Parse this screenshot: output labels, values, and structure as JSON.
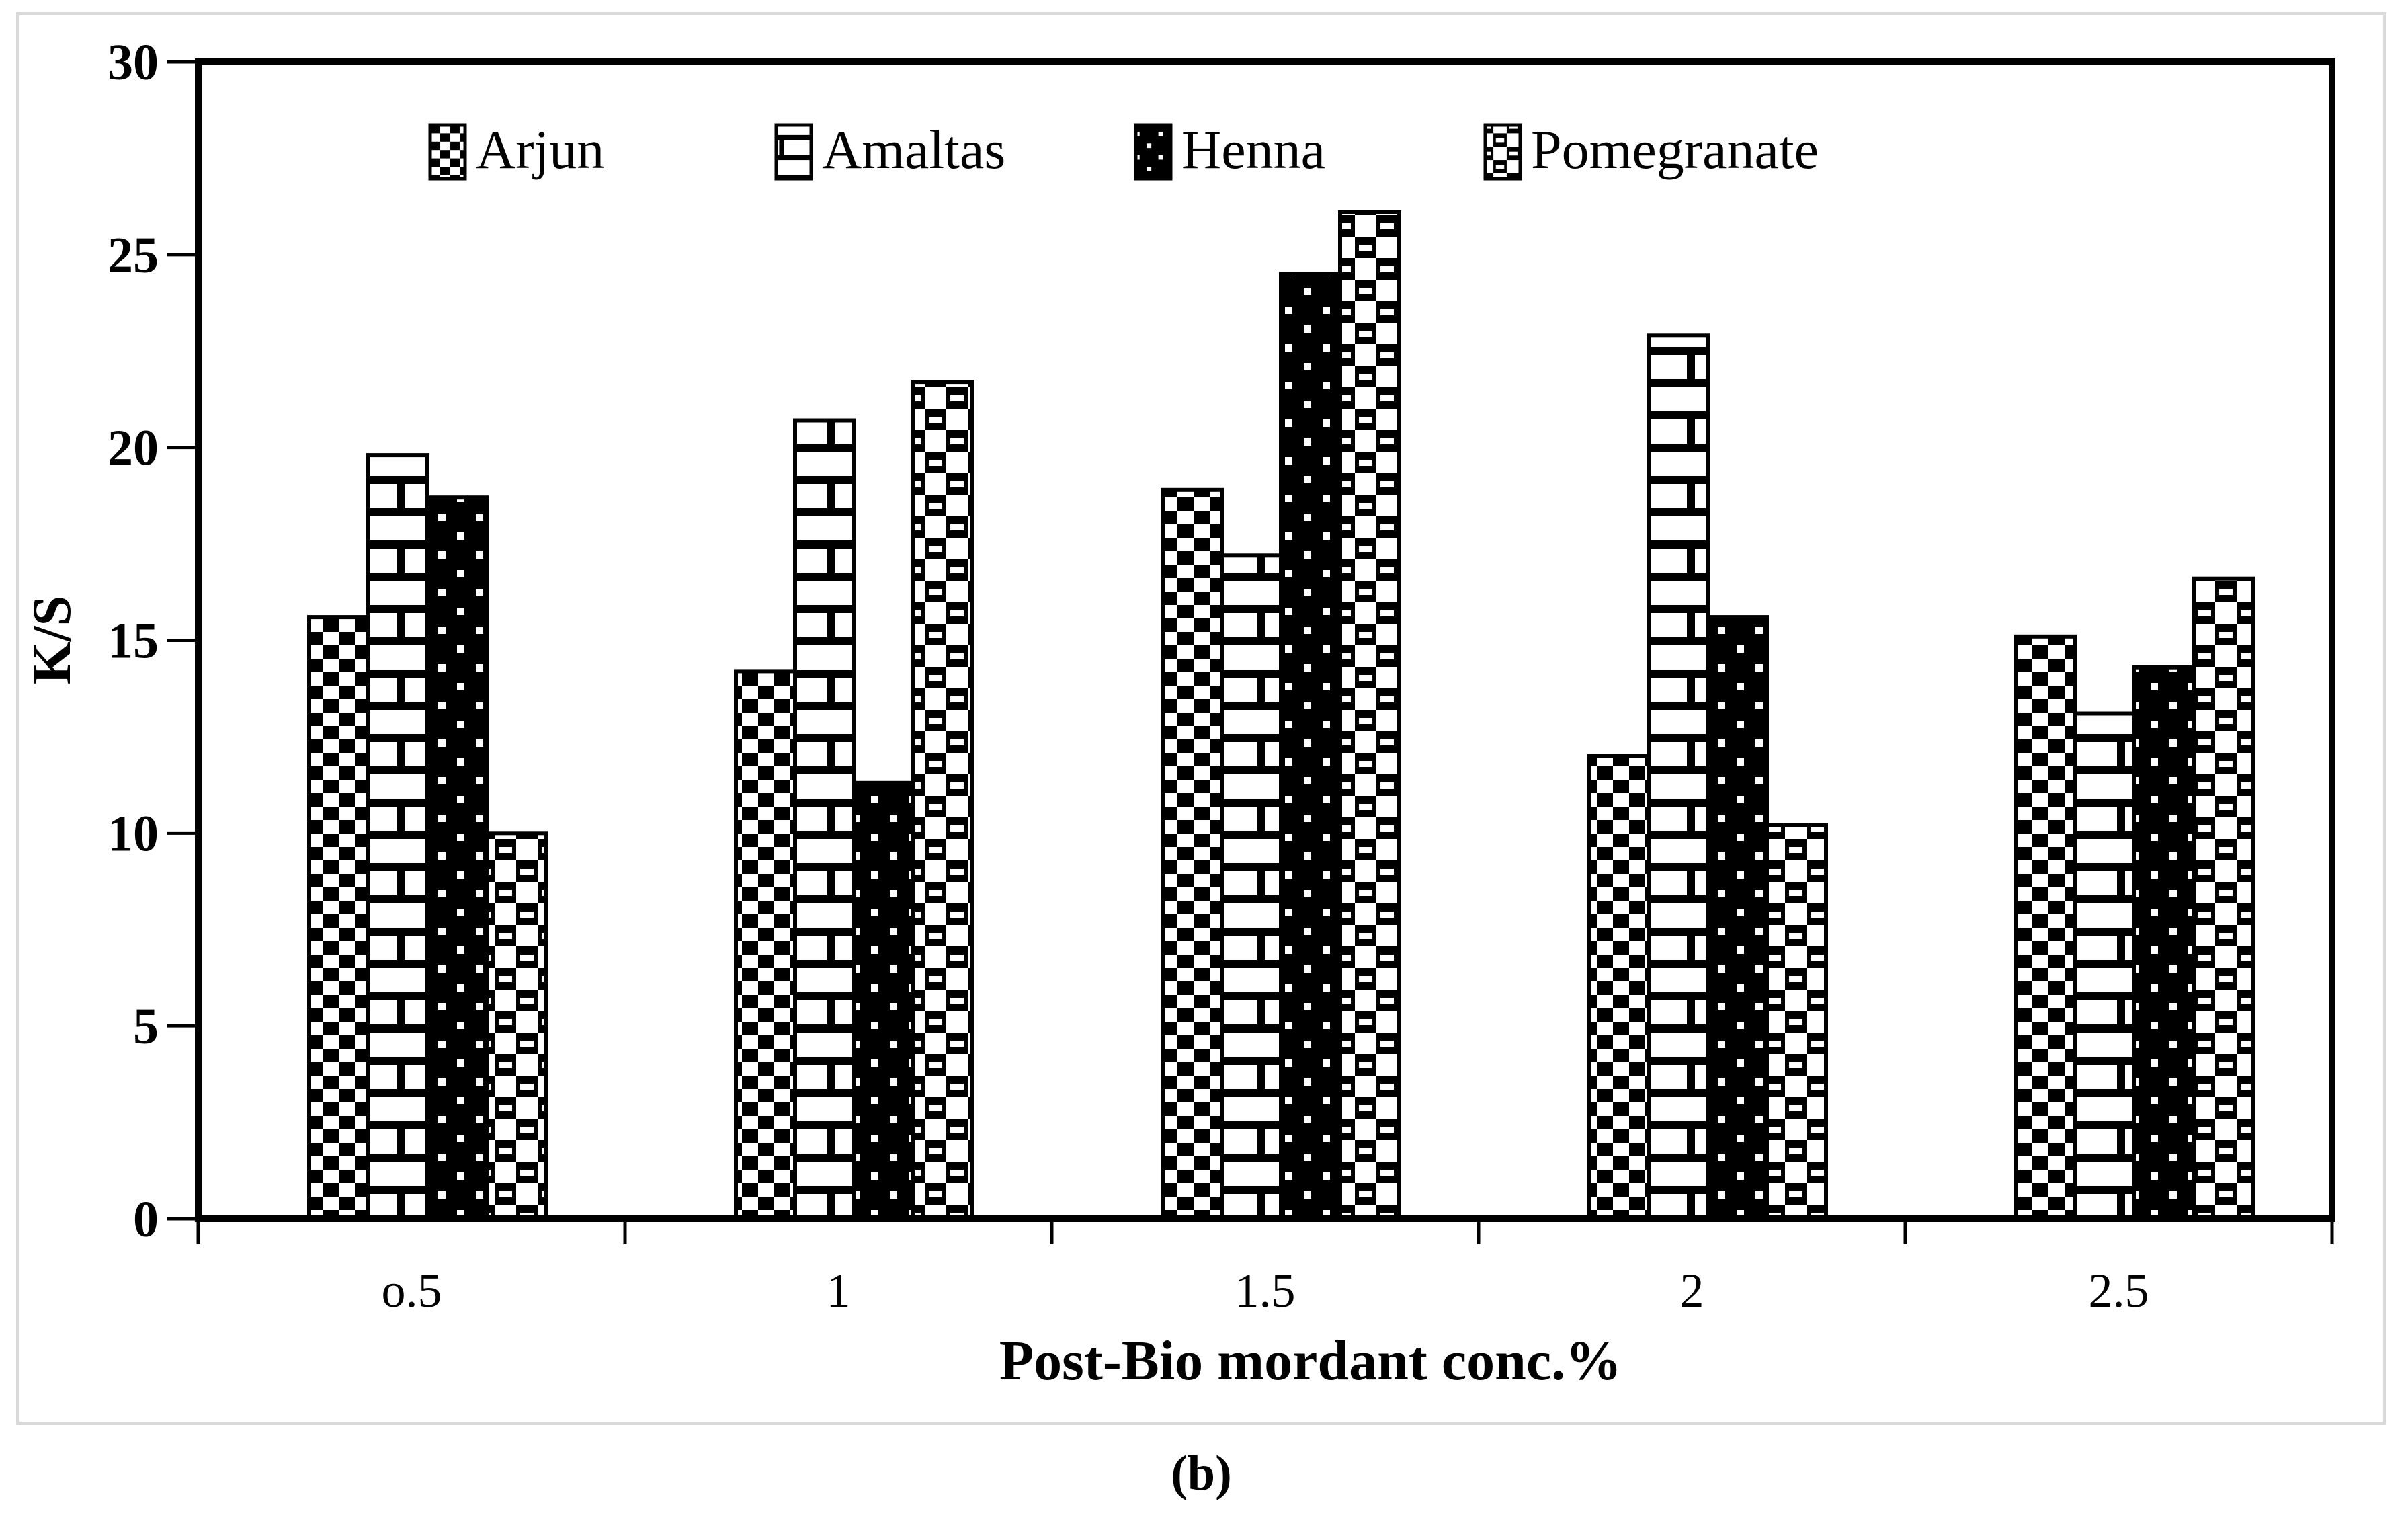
{
  "figure": {
    "caption": "(b)"
  },
  "colors": {
    "foreground": "#000000",
    "background": "#ffffff",
    "frame_border": "#d9d9d9"
  },
  "chart_data": {
    "type": "bar",
    "title": "",
    "xlabel": "Post-Bio mordant conc.%",
    "ylabel": "K/S",
    "categories": [
      "o.5",
      "1",
      "1.5",
      "2",
      "2.5"
    ],
    "series": [
      {
        "name": "Arjun",
        "pattern": "checkerboard-pattern",
        "values": [
          15.6,
          14.2,
          18.9,
          12.0,
          15.1
        ]
      },
      {
        "name": "Amaltas",
        "pattern": "brick-pattern",
        "values": [
          19.8,
          20.7,
          17.2,
          22.9,
          13.1
        ]
      },
      {
        "name": "Henna",
        "pattern": "dotted-black-pattern",
        "values": [
          18.7,
          11.3,
          24.5,
          15.6,
          14.3
        ]
      },
      {
        "name": "Pomegranate",
        "pattern": "checker-dot-pattern",
        "values": [
          10.0,
          21.7,
          26.1,
          10.2,
          16.6
        ]
      }
    ],
    "ylim": [
      0,
      30
    ],
    "ytick_step": 5,
    "yticks": [
      0,
      5,
      10,
      15,
      20,
      25,
      30
    ],
    "legend_position": "top-inside",
    "grid": false
  }
}
